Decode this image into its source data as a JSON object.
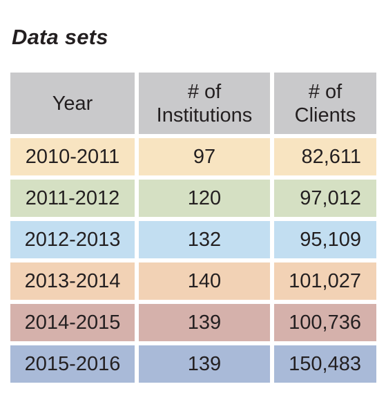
{
  "title": "Data sets",
  "table": {
    "headers": {
      "year": "Year",
      "institutions_line1": "# of",
      "institutions_line2": "Institutions",
      "clients_line1": "# of",
      "clients_line2": "Clients"
    },
    "rows": [
      {
        "year": "2010-2011",
        "institutions": "97",
        "clients": "82,611",
        "color": "#f8e4c1"
      },
      {
        "year": "2011-2012",
        "institutions": "120",
        "clients": "97,012",
        "color": "#d5e0c3"
      },
      {
        "year": "2012-2013",
        "institutions": "132",
        "clients": "95,109",
        "color": "#c2def1"
      },
      {
        "year": "2013-2014",
        "institutions": "140",
        "clients": "101,027",
        "color": "#f2d2b5"
      },
      {
        "year": "2014-2015",
        "institutions": "139",
        "clients": "100,736",
        "color": "#d5b1ab"
      },
      {
        "year": "2015-2016",
        "institutions": "139",
        "clients": "150,483",
        "color": "#a9bad8"
      }
    ]
  }
}
